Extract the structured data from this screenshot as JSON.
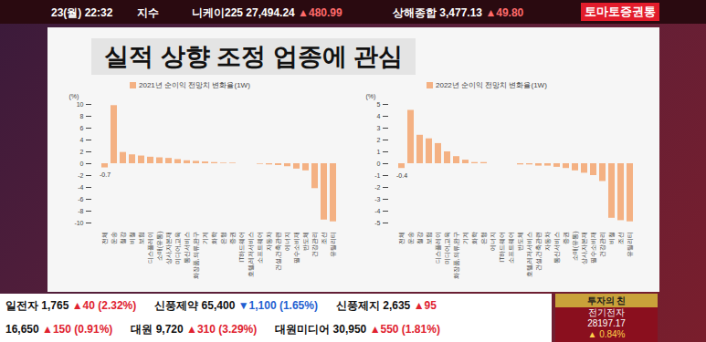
{
  "page": {
    "top_bar": {
      "date": "23(월) 22:32",
      "index_label": "지수",
      "items": [
        {
          "name": "니케이225",
          "value": "27,494.24",
          "change": "▲480.99"
        },
        {
          "name": "상해종합",
          "value": "3,477.13",
          "change": "▲49.80"
        }
      ],
      "brand": "토마토증권통"
    },
    "title": "실적 상향 조정 업종에 관심",
    "ticker_rows": [
      [
        "일전자 1,765 ▲40 (2.32%)",
        "신풍제약 65,400 ▼1,100 (1.65%)",
        "신풍제지 2,635 ▲95"
      ],
      [
        "16,650 ▲150 (0.91%)",
        "대원 9,720 ▲310 (3.29%)",
        "대원미디어 30,950 ▲550 (1.81%)"
      ]
    ],
    "corner": {
      "badge": "투자의 친",
      "name": "전기전자",
      "value": "28197.17",
      "change": "▲ 0.84%"
    }
  },
  "chart_data": [
    {
      "type": "bar",
      "ylabel": "(%)",
      "categories": [
        "전체",
        "운송",
        "철강",
        "비철",
        "보험",
        "디스플레이",
        "소매(유통)",
        "상사,자본재",
        "미디어,교육",
        "통신서비스",
        "화장품,의류,완구",
        "기계",
        "화학",
        "은행",
        "증권",
        "IT하드웨어",
        "호텔,레저서비스",
        "소프트웨어",
        "자동차",
        "건설,건축관련",
        "에너지",
        "필수소비재",
        "반도체",
        "건강관리",
        "조선",
        "유틸리티"
      ],
      "series": [
        {
          "name": "2021년 순이익 전망치 변화율(1W)",
          "color": "#f4b183",
          "values": [
            -0.7,
            9.8,
            1.9,
            1.5,
            1.3,
            1.1,
            1.0,
            0.9,
            0.7,
            0.5,
            0.4,
            0.3,
            0.2,
            0.1,
            0.1,
            0,
            0,
            -0.1,
            -0.2,
            -0.3,
            -0.5,
            -0.9,
            -1.2,
            -4.2,
            -9.5,
            -9.8
          ]
        }
      ],
      "ylim": [
        -10,
        10
      ],
      "yticks": [
        -10,
        -8,
        -6,
        -4,
        -2,
        0,
        2,
        4,
        6,
        8,
        10
      ],
      "grid": false,
      "legend": "top",
      "annotations": [
        {
          "x": "전체",
          "y": -0.7,
          "text": "-0.7"
        }
      ]
    },
    {
      "type": "bar",
      "ylabel": "(%)",
      "categories": [
        "전체",
        "운송",
        "철강",
        "보험",
        "디스플레이",
        "미디어,교육",
        "화장품,의류,완구",
        "기계",
        "화학",
        "은행",
        "에너지",
        "IT하드웨어",
        "소프트웨어",
        "반도체",
        "호텔,레저서비스",
        "건설,건축관련",
        "자동차",
        "통신서비스",
        "증권",
        "소매(유통)",
        "상사,자본재",
        "필수소비재",
        "건강관리",
        "비철",
        "조선",
        "유틸리티"
      ],
      "series": [
        {
          "name": "2022년 순이익 전망치 변화율(1W)",
          "color": "#f4b183",
          "values": [
            -0.4,
            4.5,
            2.4,
            2.1,
            1.7,
            1.0,
            0.6,
            0.3,
            0.1,
            0.1,
            0,
            0,
            0,
            -0.1,
            -0.1,
            -0.2,
            -0.2,
            -0.3,
            -0.4,
            -0.6,
            -0.8,
            -1.0,
            -1.5,
            -4.6,
            -4.8,
            -4.9
          ]
        }
      ],
      "ylim": [
        -5,
        5
      ],
      "yticks": [
        -5,
        -4,
        -3,
        -2,
        -1,
        0,
        1,
        2,
        3,
        4,
        5
      ],
      "grid": false,
      "legend": "top",
      "annotations": [
        {
          "x": "전체",
          "y": -0.4,
          "text": "-0.4"
        }
      ]
    }
  ]
}
